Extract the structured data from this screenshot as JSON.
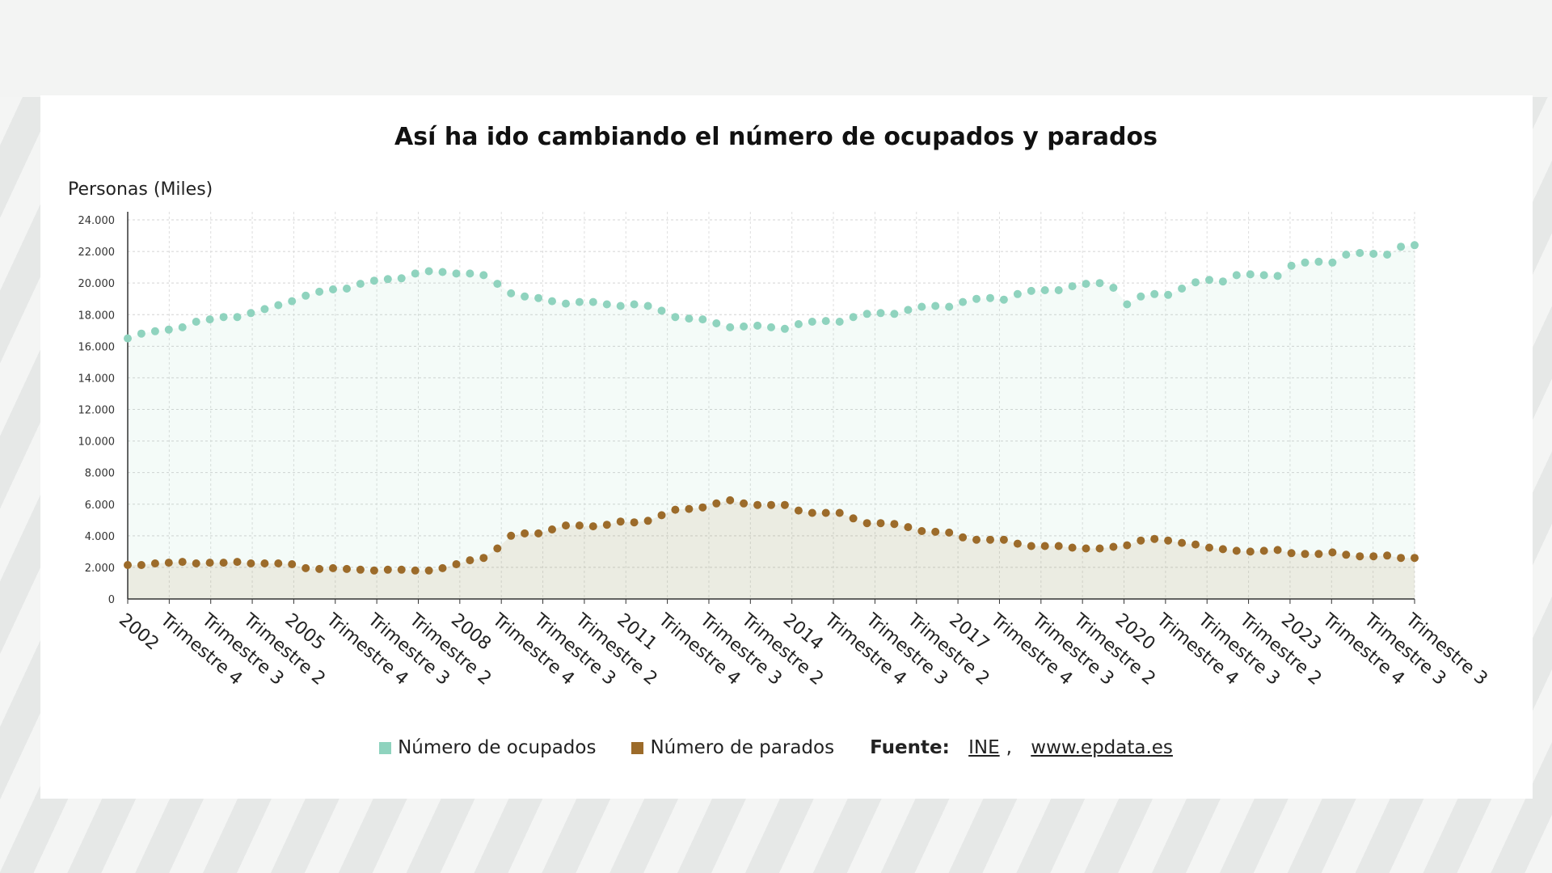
{
  "chart_data": {
    "type": "area",
    "title": "Así ha ido cambiando el número de ocupados y parados",
    "ylabel": "Personas (Miles)",
    "xlabel": "",
    "ylim": [
      0,
      24000
    ],
    "yticks": [
      "0",
      "2.000",
      "4.000",
      "6.000",
      "8.000",
      "10.000",
      "12.000",
      "14.000",
      "16.000",
      "18.000",
      "20.000",
      "22.000",
      "24.000"
    ],
    "yticks_values": [
      0,
      2000,
      4000,
      6000,
      8000,
      10000,
      12000,
      14000,
      16000,
      18000,
      20000,
      22000,
      24000
    ],
    "xticks": [
      "2002",
      "Trimestre 4",
      "Trimestre 3",
      "Trimestre 2",
      "2005",
      "Trimestre 4",
      "Trimestre 3",
      "Trimestre 2",
      "2008",
      "Trimestre 4",
      "Trimestre 3",
      "Trimestre 2",
      "2011",
      "Trimestre 4",
      "Trimestre 3",
      "Trimestre 2",
      "2014",
      "Trimestre 4",
      "Trimestre 3",
      "Trimestre 2",
      "2017",
      "Trimestre 4",
      "Trimestre 3",
      "Trimestre 2",
      "2020",
      "Trimestre 4",
      "Trimestre 3",
      "Trimestre 2",
      "2023",
      "Trimestre 4",
      "Trimestre 3",
      "Trimestre 3"
    ],
    "grid": true,
    "legend_position": "bottom",
    "series": [
      {
        "name": "Número de ocupados",
        "color": "#8fd3be",
        "values": [
          16500,
          16800,
          16950,
          17050,
          17200,
          17550,
          17700,
          17850,
          17850,
          18100,
          18350,
          18600,
          18850,
          19200,
          19450,
          19600,
          19650,
          19950,
          20150,
          20250,
          20300,
          20600,
          20750,
          20700,
          20600,
          20600,
          20500,
          19950,
          19350,
          19150,
          19050,
          18850,
          18700,
          18800,
          18800,
          18650,
          18550,
          18650,
          18550,
          18250,
          17850,
          17750,
          17700,
          17450,
          17200,
          17250,
          17300,
          17200,
          17100,
          17400,
          17550,
          17600,
          17550,
          17850,
          18050,
          18100,
          18050,
          18300,
          18500,
          18550,
          18500,
          18800,
          19000,
          19050,
          18950,
          19300,
          19500,
          19550,
          19550,
          19800,
          19950,
          20000,
          19700,
          18650,
          19150,
          19300,
          19250,
          19650,
          20050,
          20200,
          20100,
          20500,
          20550,
          20500,
          20450,
          21100,
          21300,
          21350,
          21300,
          21800,
          21900,
          21850,
          21800,
          22300,
          22400
        ]
      },
      {
        "name": "Número de parados",
        "color": "#9c6b2a",
        "values": [
          2150,
          2150,
          2250,
          2300,
          2350,
          2250,
          2300,
          2300,
          2350,
          2250,
          2250,
          2250,
          2200,
          1950,
          1900,
          1950,
          1900,
          1850,
          1800,
          1850,
          1850,
          1800,
          1800,
          1950,
          2200,
          2450,
          2600,
          3200,
          4000,
          4150,
          4150,
          4400,
          4650,
          4650,
          4600,
          4700,
          4900,
          4850,
          4950,
          5300,
          5650,
          5700,
          5800,
          6050,
          6250,
          6050,
          5950,
          5950,
          5950,
          5600,
          5450,
          5450,
          5450,
          5100,
          4800,
          4800,
          4750,
          4550,
          4300,
          4250,
          4200,
          3900,
          3750,
          3750,
          3750,
          3500,
          3350,
          3350,
          3350,
          3250,
          3200,
          3200,
          3300,
          3400,
          3700,
          3800,
          3700,
          3550,
          3450,
          3250,
          3150,
          3050,
          3000,
          3050,
          3100,
          2900,
          2850,
          2850,
          2950,
          2800,
          2700,
          2700,
          2750,
          2600,
          2600
        ]
      }
    ]
  },
  "legend": {
    "source_label": "Fuente:",
    "source_ine": "INE",
    "source_sep": ",",
    "source_site": "www.epdata.es"
  }
}
